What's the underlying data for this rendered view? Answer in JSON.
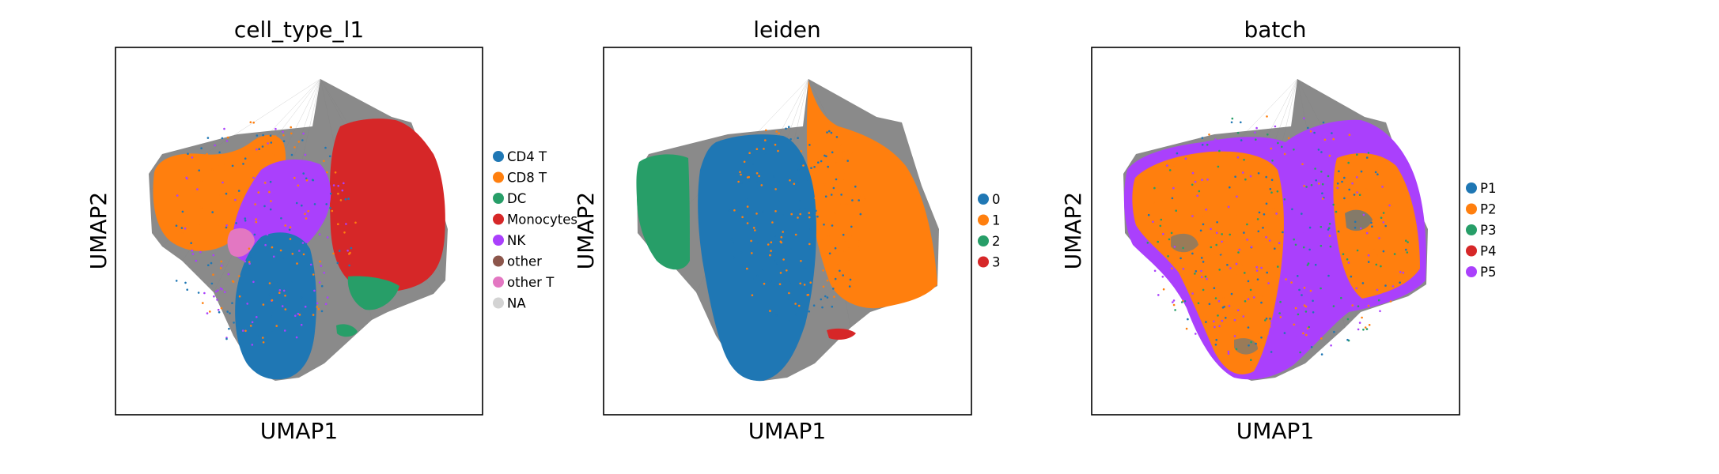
{
  "chart_data": [
    {
      "type": "scatter",
      "title": "cell_type_l1",
      "xlabel": "UMAP1",
      "ylabel": "UMAP2",
      "grid": false,
      "legend_placement": "right",
      "series": [
        {
          "name": "CD4 T",
          "color": "#1f77b4"
        },
        {
          "name": "CD8 T",
          "color": "#ff7f0e"
        },
        {
          "name": "DC",
          "color": "#279e68"
        },
        {
          "name": "Monocytes",
          "color": "#d62728"
        },
        {
          "name": "NK",
          "color": "#aa40fc"
        },
        {
          "name": "other",
          "color": "#8c564b"
        },
        {
          "name": "other T",
          "color": "#e377c2"
        },
        {
          "name": "NA",
          "color": "#d3d3d3"
        }
      ]
    },
    {
      "type": "scatter",
      "title": "leiden",
      "xlabel": "UMAP1",
      "ylabel": "UMAP2",
      "grid": false,
      "legend_placement": "right",
      "series": [
        {
          "name": "0",
          "color": "#1f77b4"
        },
        {
          "name": "1",
          "color": "#ff7f0e"
        },
        {
          "name": "2",
          "color": "#279e68"
        },
        {
          "name": "3",
          "color": "#d62728"
        }
      ]
    },
    {
      "type": "scatter",
      "title": "batch",
      "xlabel": "UMAP1",
      "ylabel": "UMAP2",
      "grid": false,
      "legend_placement": "right",
      "series": [
        {
          "name": "P1",
          "color": "#1f77b4"
        },
        {
          "name": "P2",
          "color": "#ff7f0e"
        },
        {
          "name": "P3",
          "color": "#279e68"
        },
        {
          "name": "P4",
          "color": "#d62728"
        },
        {
          "name": "P5",
          "color": "#aa40fc"
        }
      ]
    }
  ]
}
